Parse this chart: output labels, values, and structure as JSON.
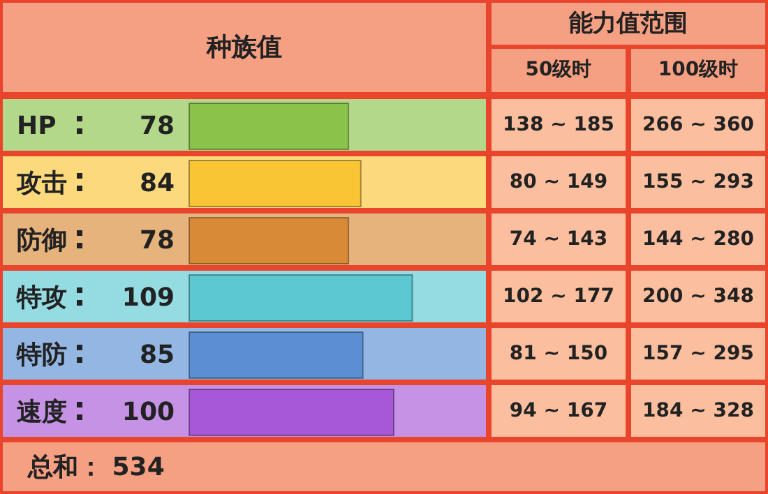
{
  "chart_data": {
    "type": "bar",
    "orientation": "horizontal",
    "title": "种族值",
    "categories": [
      "HP",
      "攻击",
      "防御",
      "特攻",
      "特防",
      "速度"
    ],
    "values": [
      78,
      84,
      78,
      109,
      85,
      100
    ],
    "colors": [
      "#8bc34a",
      "#f9c535",
      "#d98a36",
      "#5bc8d2",
      "#5b8fd4",
      "#a658d8"
    ],
    "data_labels": true,
    "tick_labels": "y",
    "annotations": [
      "能力值范围",
      "50级时",
      "100级时",
      "138 ~ 185",
      "266 ~ 360",
      "80 ~ 149",
      "155 ~ 293",
      "74 ~ 143",
      "144 ~ 280",
      "102 ~ 177",
      "200 ~ 348",
      "81 ~ 150",
      "157 ~ 295",
      "94 ~ 167",
      "184 ~ 328",
      "总和： 534"
    ]
  }
}
